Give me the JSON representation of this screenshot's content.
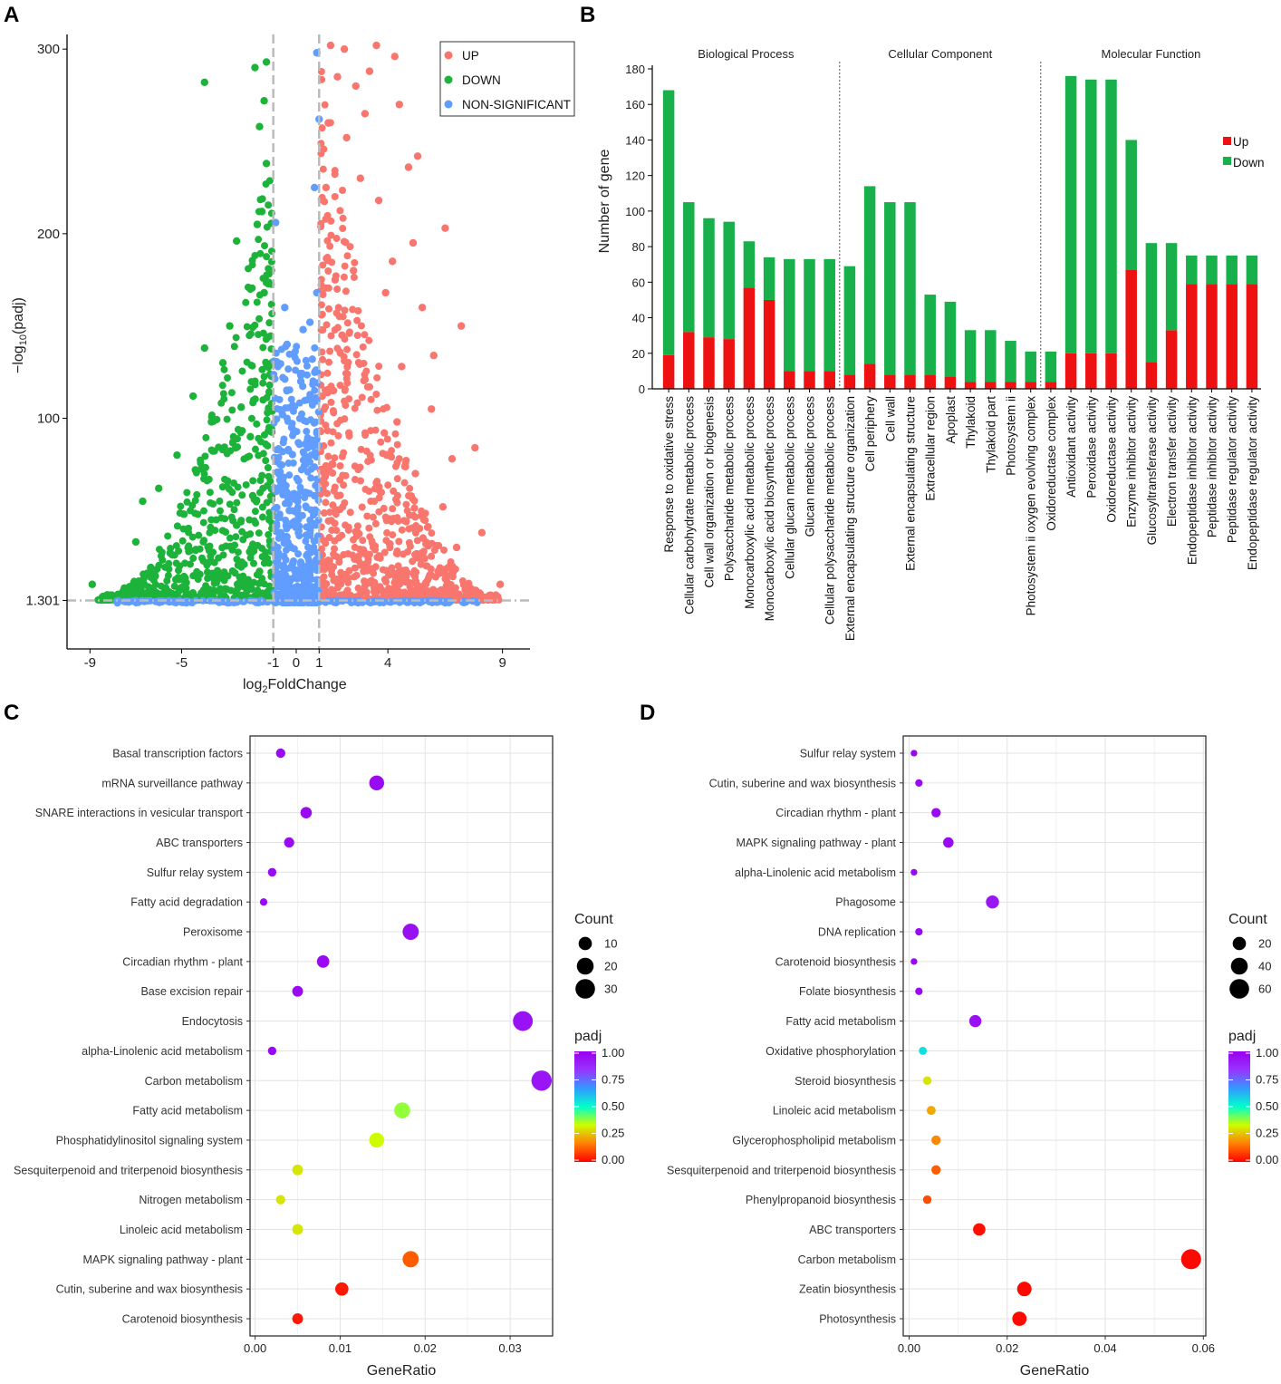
{
  "panels": {
    "a": "A",
    "b": "B",
    "c": "C",
    "d": "D"
  },
  "colors": {
    "up": "#f8766d",
    "down": "#1db33b",
    "ns": "#619cff",
    "bar_up": "#ee1111",
    "bar_down": "#17b04a",
    "padj_scale": [
      "#ff0000",
      "#ff8000",
      "#ccff00",
      "#00ffcc",
      "#3399ff",
      "#9933ff",
      "#9900ee"
    ]
  },
  "chart_data": [
    {
      "id": "volcano",
      "type": "scatter",
      "xlabel_base": "log",
      "xlabel_sub": "2",
      "xlabel_rest": "FoldChange",
      "ylabel_pre": "−log",
      "ylabel_sub": "10",
      "ylabel_post": "(padj)",
      "xlim": [
        -10,
        10.2
      ],
      "ylim": [
        -25,
        305
      ],
      "x_ticks": [
        -9,
        -5,
        -1,
        0,
        1,
        4,
        9
      ],
      "x_tick_labels": [
        "-9",
        "-5",
        "-1",
        "0",
        "1",
        "4",
        "9"
      ],
      "y_ticks": [
        1.301,
        100,
        200,
        300
      ],
      "y_tick_labels": [
        "1.301",
        "100",
        "200",
        "300"
      ],
      "fc_threshold": 1,
      "padj_threshold": 1.301,
      "legend": [
        "UP",
        "DOWN",
        "NON-SIGNIFICANT"
      ],
      "series": [
        {
          "name": "UP",
          "points": [
            [
              1.5,
              302
            ],
            [
              2.1,
              300
            ],
            [
              3.5,
              302
            ],
            [
              4.3,
              296
            ],
            [
              3.2,
              288
            ],
            [
              1.8,
              285
            ],
            [
              2.6,
              280
            ],
            [
              4.5,
              270
            ],
            [
              3.0,
              265
            ],
            [
              1.4,
              260
            ],
            [
              2.2,
              252
            ],
            [
              5.3,
              242
            ],
            [
              4.9,
              236
            ],
            [
              2.8,
              230
            ],
            [
              1.3,
              225
            ],
            [
              3.6,
              218
            ],
            [
              6.5,
              203
            ],
            [
              5.1,
              195
            ],
            [
              4.2,
              185
            ],
            [
              2.5,
              180
            ],
            [
              1.7,
              175
            ],
            [
              3.9,
              168
            ],
            [
              5.5,
              160
            ],
            [
              7.2,
              150
            ],
            [
              2.0,
              145
            ],
            [
              6.0,
              134
            ],
            [
              4.6,
              128
            ],
            [
              3.0,
              121
            ],
            [
              1.6,
              115
            ],
            [
              5.9,
              105
            ],
            [
              4.4,
              98
            ],
            [
              2.3,
              92
            ],
            [
              7.8,
              84
            ],
            [
              6.8,
              78
            ],
            [
              5.2,
              70
            ],
            [
              3.5,
              65
            ],
            [
              1.8,
              58
            ],
            [
              6.4,
              52
            ],
            [
              4.8,
              44
            ],
            [
              8.1,
              38
            ],
            [
              7.0,
              30
            ],
            [
              5.6,
              24
            ],
            [
              3.2,
              18
            ],
            [
              2.0,
              14
            ],
            [
              8.9,
              10
            ],
            [
              7.6,
              8
            ],
            [
              6.2,
              6
            ],
            [
              4.5,
              5
            ],
            [
              1.2,
              4
            ]
          ]
        },
        {
          "name": "DOWN",
          "points": [
            [
              -1.3,
              293
            ],
            [
              -1.4,
              272
            ],
            [
              -1.8,
              290
            ],
            [
              -4.0,
              282
            ],
            [
              -1.6,
              258
            ],
            [
              -1.3,
              238
            ],
            [
              -1.5,
              212
            ],
            [
              -1.7,
              205
            ],
            [
              -2.6,
              196
            ],
            [
              -2.0,
              170
            ],
            [
              -1.4,
              168
            ],
            [
              -2.9,
              150
            ],
            [
              -4.0,
              138
            ],
            [
              -3.2,
              130
            ],
            [
              -1.8,
              120
            ],
            [
              -4.5,
              112
            ],
            [
              -2.4,
              106
            ],
            [
              -3.7,
              98
            ],
            [
              -2.0,
              90
            ],
            [
              -5.2,
              80
            ],
            [
              -4.4,
              72
            ],
            [
              -3.0,
              66
            ],
            [
              -6.0,
              62
            ],
            [
              -1.9,
              58
            ],
            [
              -6.7,
              55
            ],
            [
              -4.9,
              48
            ],
            [
              -2.6,
              42
            ],
            [
              -7.0,
              33
            ],
            [
              -5.5,
              27
            ],
            [
              -3.8,
              22
            ],
            [
              -1.6,
              17
            ],
            [
              -8.9,
              10
            ],
            [
              -7.5,
              8
            ],
            [
              -6.3,
              6
            ],
            [
              -4.5,
              5
            ],
            [
              -2.4,
              4
            ],
            [
              -1.2,
              3
            ]
          ]
        },
        {
          "name": "NON-SIGNIFICANT",
          "points": [
            [
              0.9,
              298
            ],
            [
              1.0,
              262
            ],
            [
              0.8,
              225
            ],
            [
              -0.9,
              206
            ],
            [
              0.9,
              168
            ],
            [
              -0.5,
              160
            ],
            [
              0.6,
              152
            ],
            [
              0.3,
              148
            ],
            [
              -0.4,
              140
            ],
            [
              0.7,
              132
            ],
            [
              -0.8,
              128
            ],
            [
              0.2,
              120
            ],
            [
              0.5,
              110
            ],
            [
              -0.6,
              102
            ],
            [
              -0.2,
              95
            ],
            [
              0.4,
              86
            ],
            [
              -0.7,
              75
            ],
            [
              0.1,
              66
            ],
            [
              0.8,
              58
            ],
            [
              -0.3,
              50
            ],
            [
              0.6,
              38
            ],
            [
              -0.9,
              30
            ],
            [
              0.2,
              22
            ],
            [
              -0.5,
              14
            ],
            [
              0.9,
              8
            ],
            [
              -0.2,
              4
            ],
            [
              0.4,
              2
            ],
            [
              -6.5,
              1
            ],
            [
              -4.8,
              0
            ],
            [
              -3.0,
              0
            ],
            [
              2.7,
              0
            ],
            [
              4.6,
              1
            ],
            [
              6.5,
              0
            ],
            [
              7.7,
              1
            ],
            [
              -7.8,
              0
            ]
          ]
        }
      ]
    },
    {
      "id": "go_bar",
      "type": "bar",
      "ylabel": "Number of gene",
      "ylim": [
        0,
        180
      ],
      "y_ticks": [
        0,
        20,
        40,
        60,
        80,
        100,
        120,
        140,
        160,
        180
      ],
      "y_tick_labels": [
        "0",
        "20",
        "40",
        "60",
        "80",
        "100",
        "120",
        "140",
        "160",
        "180"
      ],
      "legend": [
        "Up",
        "Down"
      ],
      "groups": [
        {
          "name": "Biological Process",
          "start": 0,
          "end": 8
        },
        {
          "name": "Cellular Component",
          "start": 9,
          "end": 18
        },
        {
          "name": "Molecular Function",
          "start": 19,
          "end": 28
        }
      ],
      "categories": [
        "Response to oxidative stress",
        "Cellular carbohydrate metabolic process",
        "Cell wall organization or biogenesis",
        "Polysaccharide metabolic process",
        "Monocarboxylic acid metabolic process",
        "Monocarboxylic acid biosynthetic process",
        "Cellular glucan metabolic process",
        "Glucan metabolic process",
        "Cellular polysaccharide metabolic process",
        "External encapsulating structure organization",
        "Cell periphery",
        "Cell wall",
        "External encapsulating structure",
        "Extracellular region",
        "Apoplast",
        "Thylakoid",
        "Thylakoid part",
        "Photosystem ii",
        "Photosystem ii oxygen evolving complex",
        "Oxidoreductase complex",
        "Antioxidant activity",
        "Peroxidase activity",
        "Oxidoreductase activity",
        "Enzyme inhibitor activity",
        "Glucosyltransferase activity",
        "Electron transfer activity",
        "Endopeptidase inhibitor activity",
        "Peptidase inhibitor activity",
        "Peptidase regulator activity",
        "Endopeptidase regulator activity"
      ],
      "series": [
        {
          "name": "Up",
          "values": [
            19,
            32,
            29,
            28,
            57,
            50,
            10,
            10,
            10,
            8,
            14,
            8,
            8,
            8,
            7,
            4,
            4,
            4,
            4,
            4,
            20,
            20,
            20,
            67,
            15,
            33,
            59,
            59,
            59,
            59
          ]
        },
        {
          "name": "Down",
          "values": [
            149,
            73,
            67,
            66,
            26,
            24,
            63,
            63,
            63,
            61,
            100,
            97,
            97,
            45,
            42,
            29,
            29,
            23,
            17,
            17,
            156,
            154,
            154,
            73,
            67,
            49,
            16,
            16,
            16,
            16
          ]
        }
      ]
    },
    {
      "id": "kegg_up",
      "type": "scatter",
      "xlabel": "GeneRatio",
      "xlim": [
        -0.0006,
        0.035
      ],
      "x_ticks": [
        0,
        0.01,
        0.02,
        0.03
      ],
      "x_tick_labels": [
        "0.00",
        "0.01",
        "0.02",
        "0.03"
      ],
      "size_legend_title": "Count",
      "size_breaks": [
        10,
        20,
        30
      ],
      "size_break_labels": [
        "10",
        "20",
        "30"
      ],
      "color_legend_title": "padj",
      "color_breaks_labels": [
        "1.00",
        "0.75",
        "0.50",
        "0.25",
        "0.00"
      ],
      "categories": [
        "Basal transcription factors",
        "mRNA surveillance pathway",
        "SNARE interactions in vesicular transport",
        "ABC transporters",
        "Sulfur relay system",
        "Fatty acid degradation",
        "Peroxisome",
        "Circadian rhythm - plant",
        "Base excision repair",
        "Endocytosis",
        "alpha-Linolenic acid metabolism",
        "Carbon metabolism",
        "Fatty acid metabolism",
        "Phosphatidylinositol signaling system",
        "Sesquiterpenoid and triterpenoid biosynthesis",
        "Nitrogen metabolism",
        "Linoleic acid metabolism",
        "MAPK signaling pathway - plant",
        "Cutin, suberine and wax biosynthesis",
        "Carotenoid biosynthesis"
      ],
      "gene_ratio": [
        0.003,
        0.0143,
        0.006,
        0.004,
        0.002,
        0.001,
        0.0183,
        0.008,
        0.005,
        0.0315,
        0.002,
        0.0337,
        0.0173,
        0.0143,
        0.005,
        0.003,
        0.005,
        0.0183,
        0.0102,
        0.005
      ],
      "count": [
        3,
        14,
        6,
        4,
        2,
        1,
        18,
        8,
        5,
        31,
        2,
        33,
        17,
        14,
        5,
        3,
        5,
        18,
        10,
        5
      ],
      "padj": [
        0.97,
        0.97,
        0.97,
        0.97,
        0.97,
        0.97,
        0.95,
        0.97,
        0.97,
        0.94,
        0.97,
        0.93,
        0.38,
        0.33,
        0.3,
        0.3,
        0.3,
        0.12,
        0.03,
        0.03
      ]
    },
    {
      "id": "kegg_down",
      "type": "scatter",
      "xlabel": "GeneRatio",
      "xlim": [
        -0.0012,
        0.0605
      ],
      "x_ticks": [
        0,
        0.02,
        0.04,
        0.06
      ],
      "x_tick_labels": [
        "0.00",
        "0.02",
        "0.04",
        "0.06"
      ],
      "size_legend_title": "Count",
      "size_breaks": [
        20,
        40,
        60
      ],
      "size_break_labels": [
        "20",
        "40",
        "60"
      ],
      "color_legend_title": "padj",
      "color_breaks_labels": [
        "1.00",
        "0.75",
        "0.50",
        "0.25",
        "0.00"
      ],
      "categories": [
        "Sulfur relay system",
        "Cutin, suberine and wax biosynthesis",
        "Circadian rhythm - plant",
        "MAPK signaling pathway - plant",
        "alpha-Linolenic acid metabolism",
        "Phagosome",
        "DNA replication",
        "Carotenoid biosynthesis",
        "Folate biosynthesis",
        "Fatty acid metabolism",
        "Oxidative phosphorylation",
        "Steroid biosynthesis",
        "Linoleic acid metabolism",
        "Glycerophospholipid metabolism",
        "Sesquiterpenoid and triterpenoid biosynthesis",
        "Phenylpropanoid biosynthesis",
        "ABC transporters",
        "Carbon metabolism",
        "Zeatin biosynthesis",
        "Photosynthesis"
      ],
      "gene_ratio": [
        0.001,
        0.002,
        0.0055,
        0.008,
        0.001,
        0.017,
        0.002,
        0.001,
        0.002,
        0.0135,
        0.0028,
        0.0037,
        0.0045,
        0.0055,
        0.0055,
        0.0037,
        0.0143,
        0.0575,
        0.0235,
        0.0225
      ],
      "count": [
        1,
        2,
        6,
        9,
        1,
        19,
        2,
        1,
        2,
        15,
        3,
        4,
        5,
        6,
        6,
        4,
        16,
        64,
        26,
        25
      ],
      "padj": [
        0.98,
        0.97,
        0.97,
        0.97,
        0.97,
        0.93,
        0.97,
        0.97,
        0.97,
        0.95,
        0.55,
        0.3,
        0.22,
        0.18,
        0.12,
        0.1,
        0.02,
        0.01,
        0.01,
        0.01
      ]
    }
  ]
}
